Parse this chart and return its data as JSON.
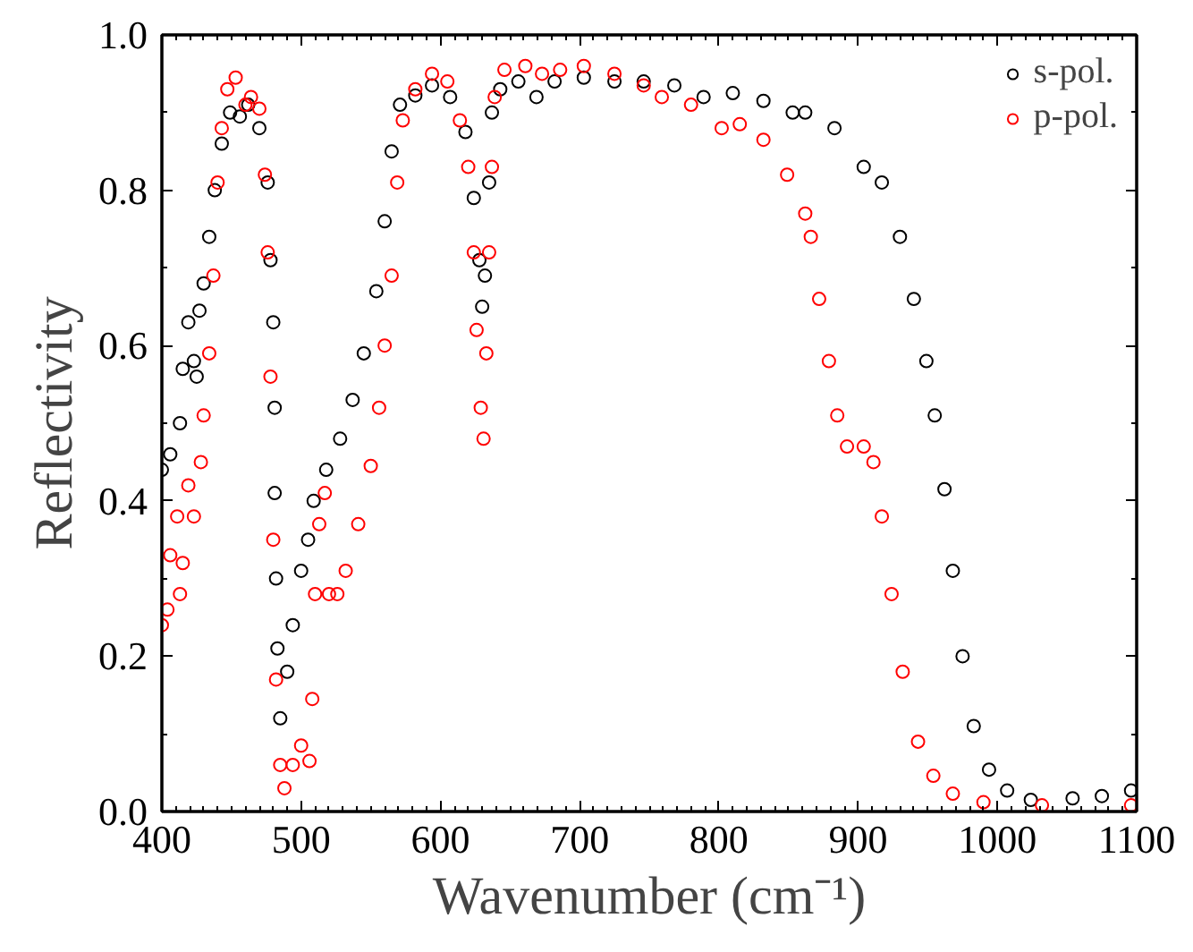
{
  "chart_data": {
    "type": "scatter",
    "xlabel": "Wavenumber (cm⁻¹)",
    "ylabel": "Reflectivity",
    "xlim": [
      400,
      1100
    ],
    "ylim": [
      0,
      1
    ],
    "xticks": [
      400,
      500,
      600,
      700,
      800,
      900,
      1000,
      1100
    ],
    "yticks": [
      {
        "value": 0,
        "label": "0.0"
      },
      {
        "value": 0.2,
        "label": "0.2"
      },
      {
        "value": 0.4,
        "label": "0.4"
      },
      {
        "value": 0.6,
        "label": "0.6"
      },
      {
        "value": 0.8,
        "label": "0.8"
      },
      {
        "value": 1,
        "label": "1.0"
      }
    ],
    "marker": "circle",
    "grid": false,
    "legend": "top right",
    "series": [
      {
        "name": "s-pol.",
        "color": "#000000",
        "x": [
          400,
          406,
          413,
          415,
          419,
          423,
          425,
          427,
          430,
          434,
          438,
          443,
          449,
          456,
          462,
          470,
          476,
          478,
          480,
          481,
          481,
          482,
          483,
          485,
          490,
          494,
          500,
          505,
          509,
          518,
          528,
          537,
          545,
          554,
          560,
          565,
          571,
          582,
          594,
          607,
          618,
          624,
          628,
          630,
          632,
          635,
          637,
          643,
          656,
          669,
          682,
          703,
          725,
          746,
          768,
          789,
          810,
          832,
          853,
          862,
          883,
          904,
          917,
          930,
          940,
          949,
          955,
          962,
          968,
          975,
          983,
          994,
          1007,
          1024,
          1054,
          1075,
          1096
        ],
        "values": [
          0.44,
          0.46,
          0.5,
          0.57,
          0.63,
          0.58,
          0.56,
          0.645,
          0.68,
          0.74,
          0.8,
          0.86,
          0.9,
          0.895,
          0.91,
          0.88,
          0.81,
          0.71,
          0.63,
          0.52,
          0.41,
          0.3,
          0.21,
          0.12,
          0.18,
          0.24,
          0.31,
          0.35,
          0.4,
          0.44,
          0.48,
          0.53,
          0.59,
          0.67,
          0.76,
          0.85,
          0.91,
          0.922,
          0.935,
          0.92,
          0.875,
          0.79,
          0.71,
          0.65,
          0.69,
          0.81,
          0.9,
          0.93,
          0.94,
          0.92,
          0.94,
          0.945,
          0.94,
          0.94,
          0.935,
          0.92,
          0.925,
          0.915,
          0.9,
          0.9,
          0.88,
          0.83,
          0.81,
          0.74,
          0.66,
          0.58,
          0.51,
          0.415,
          0.31,
          0.2,
          0.11,
          0.054,
          0.027,
          0.015,
          0.017,
          0.02,
          0.027
        ]
      },
      {
        "name": "p-pol.",
        "color": "#ff0000",
        "x": [
          400,
          404,
          406,
          411,
          413,
          415,
          419,
          423,
          428,
          430,
          434,
          437,
          440,
          443,
          447,
          453,
          460,
          464,
          470,
          474,
          476,
          478,
          480,
          482,
          485,
          488,
          494,
          500,
          506,
          508,
          510,
          513,
          517,
          520,
          526,
          532,
          541,
          550,
          556,
          560,
          565,
          569,
          573,
          582,
          594,
          605,
          614,
          620,
          624,
          626,
          629,
          631,
          633,
          635,
          637,
          639,
          646,
          661,
          673,
          686,
          703,
          725,
          746,
          759,
          780,
          802,
          815,
          832,
          849,
          862,
          866,
          872,
          879,
          885,
          892,
          904,
          911,
          917,
          924,
          932,
          943,
          954,
          968,
          990,
          1032,
          1096
        ],
        "values": [
          0.24,
          0.26,
          0.33,
          0.38,
          0.28,
          0.32,
          0.42,
          0.38,
          0.45,
          0.51,
          0.59,
          0.69,
          0.81,
          0.88,
          0.93,
          0.945,
          0.91,
          0.92,
          0.905,
          0.82,
          0.72,
          0.56,
          0.35,
          0.17,
          0.06,
          0.03,
          0.06,
          0.085,
          0.065,
          0.145,
          0.28,
          0.37,
          0.41,
          0.28,
          0.28,
          0.31,
          0.37,
          0.445,
          0.52,
          0.6,
          0.69,
          0.81,
          0.89,
          0.93,
          0.95,
          0.94,
          0.89,
          0.83,
          0.72,
          0.62,
          0.52,
          0.48,
          0.59,
          0.72,
          0.83,
          0.92,
          0.955,
          0.96,
          0.95,
          0.955,
          0.96,
          0.95,
          0.935,
          0.92,
          0.91,
          0.88,
          0.885,
          0.865,
          0.82,
          0.77,
          0.74,
          0.66,
          0.58,
          0.51,
          0.47,
          0.47,
          0.45,
          0.38,
          0.28,
          0.18,
          0.09,
          0.046,
          0.023,
          0.012,
          0.008,
          0.008
        ]
      }
    ]
  }
}
